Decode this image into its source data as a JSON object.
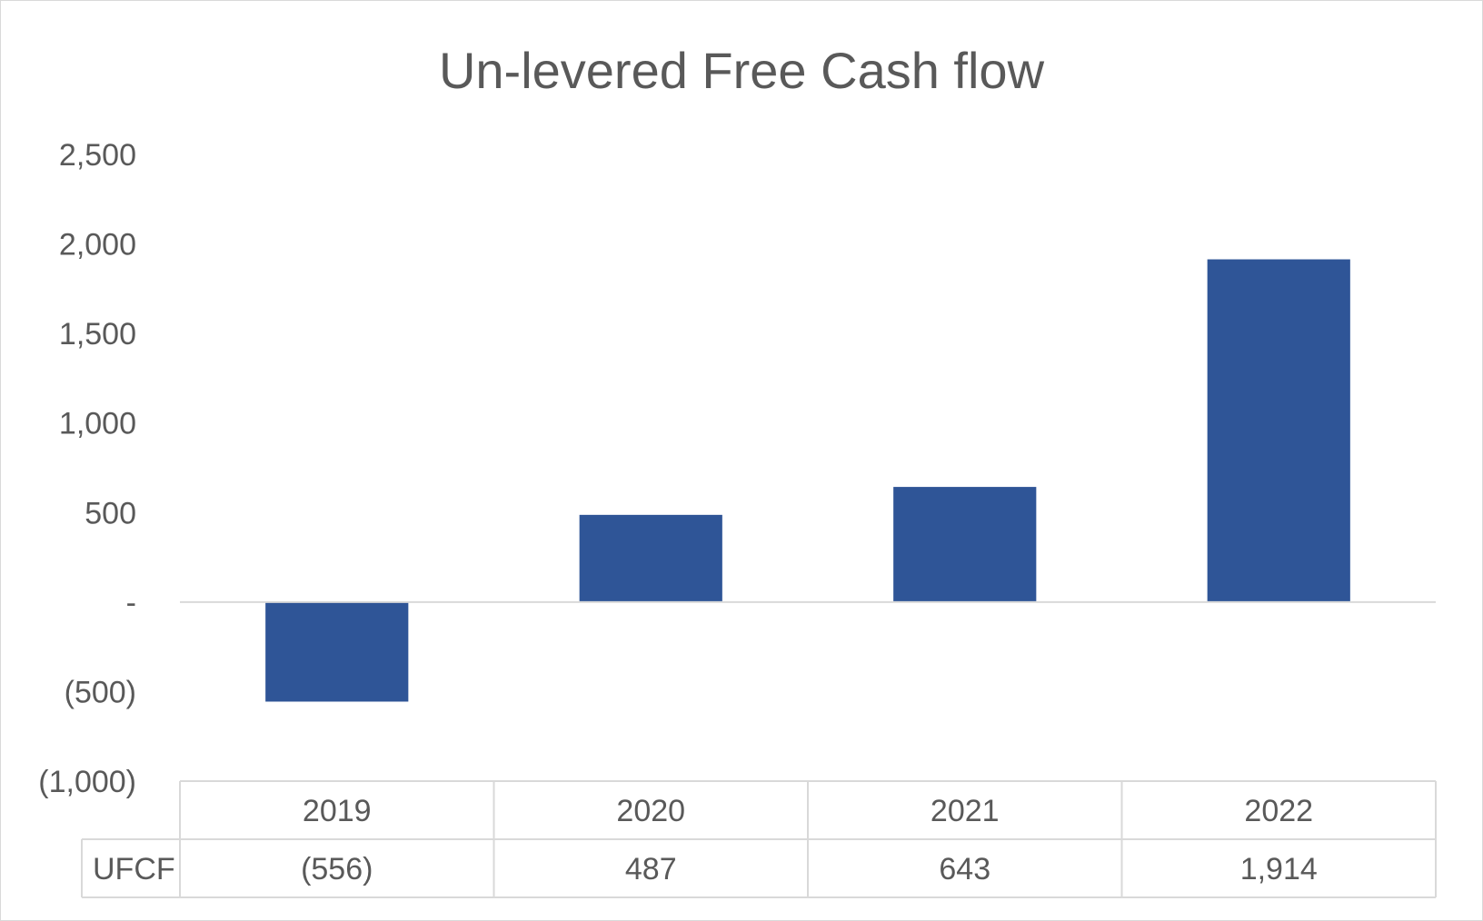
{
  "chart_data": {
    "type": "bar",
    "title": "Un-levered Free Cash flow",
    "categories": [
      "2019",
      "2020",
      "2021",
      "2022"
    ],
    "series": [
      {
        "name": "UFCF",
        "values": [
          -556,
          487,
          643,
          1914
        ],
        "labels": [
          "(556)",
          "487",
          "643",
          "1,914"
        ]
      }
    ],
    "ylim": [
      -1000,
      2500
    ],
    "yticks": [
      2500,
      2000,
      1500,
      1000,
      500,
      0,
      -500,
      -1000
    ],
    "ytick_labels": [
      "2,500",
      "2,000",
      "1,500",
      "1,000",
      "500",
      "-",
      "(500)",
      "(1,000)"
    ],
    "data_table": true,
    "colors": {
      "bar": "#2f5597",
      "text": "#595959",
      "grid": "#d9d9d9"
    }
  }
}
